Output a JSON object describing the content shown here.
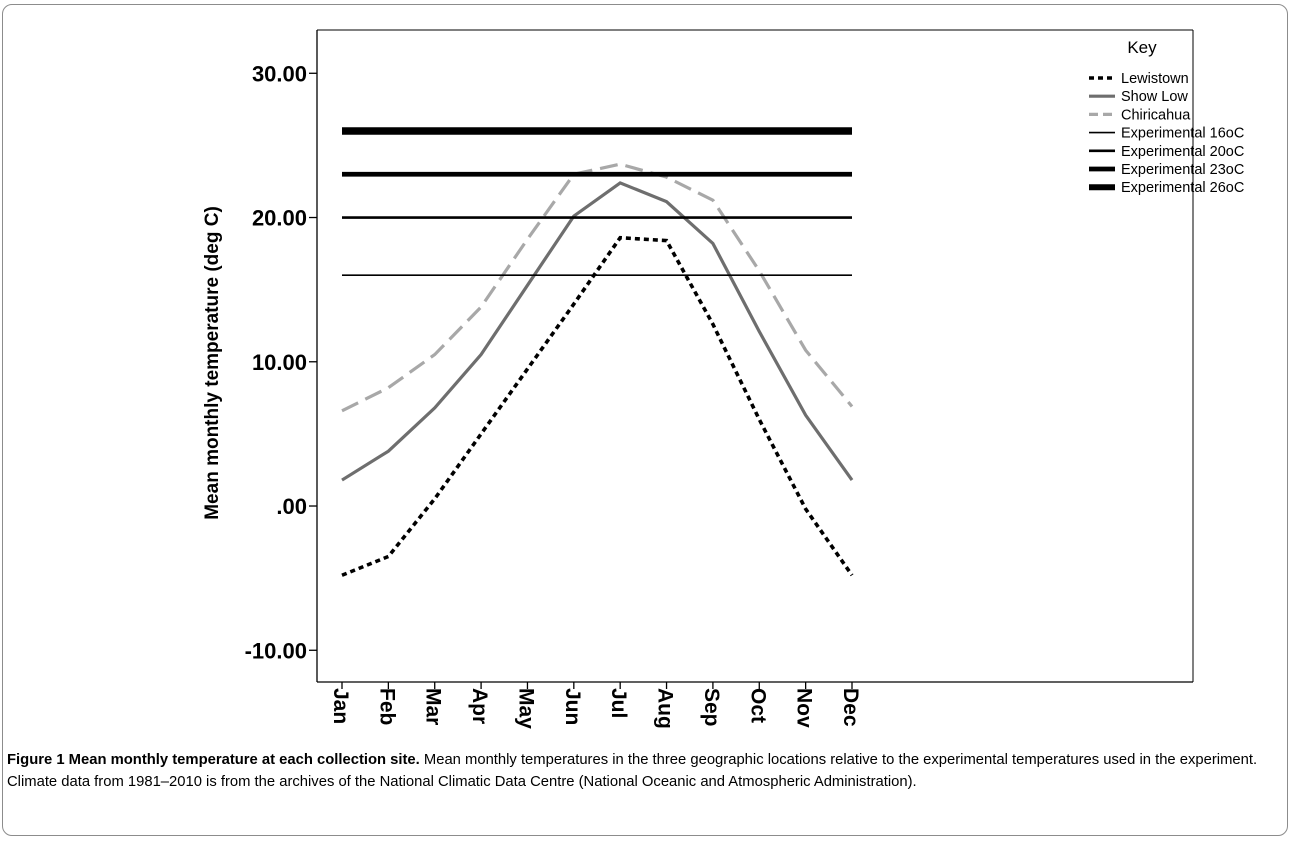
{
  "chart_data": {
    "type": "line",
    "ylabel": "Mean monthly temperature (deg C)",
    "xlabel": "",
    "categories": [
      "Jan",
      "Feb",
      "Mar",
      "Apr",
      "May",
      "Jun",
      "Jul",
      "Aug",
      "Sep",
      "Oct",
      "Nov",
      "Dec"
    ],
    "ylim": [
      -12.2,
      33.0
    ],
    "yticks": [
      -10,
      0,
      10,
      20,
      30
    ],
    "ytick_labels": [
      "-10.00",
      ".00",
      "10.00",
      "20.00",
      "30.00"
    ],
    "grid": false,
    "legend": {
      "title": "Key",
      "placement": "right"
    },
    "series": [
      {
        "name": "Lewistown",
        "style": "dotted-heavy",
        "color": "#000000",
        "values": [
          -4.8,
          -3.5,
          0.5,
          5.0,
          9.5,
          14.0,
          18.6,
          18.4,
          12.6,
          6.0,
          -0.2,
          -4.8
        ]
      },
      {
        "name": "Show Low",
        "style": "solid-gray",
        "color": "#6e6e6e",
        "values": [
          1.8,
          3.8,
          6.8,
          10.5,
          15.3,
          20.1,
          22.4,
          21.1,
          18.2,
          12.1,
          6.3,
          1.8
        ]
      },
      {
        "name": "Chiricahua",
        "style": "dashed-lightgray",
        "color": "#a8a8a8",
        "values": [
          6.6,
          8.2,
          10.5,
          13.8,
          18.5,
          23.0,
          23.7,
          22.8,
          21.2,
          16.3,
          10.8,
          6.9
        ]
      },
      {
        "name": "Experimental 16oC",
        "style": "line-thin",
        "color": "#000000",
        "values": [
          16,
          16,
          16,
          16,
          16,
          16,
          16,
          16,
          16,
          16,
          16,
          16
        ]
      },
      {
        "name": "Experimental 20oC",
        "style": "line-medium",
        "color": "#000000",
        "values": [
          20,
          20,
          20,
          20,
          20,
          20,
          20,
          20,
          20,
          20,
          20,
          20
        ]
      },
      {
        "name": "Experimental 23oC",
        "style": "line-thick",
        "color": "#000000",
        "values": [
          23,
          23,
          23,
          23,
          23,
          23,
          23,
          23,
          23,
          23,
          23,
          23
        ]
      },
      {
        "name": "Experimental 26oC",
        "style": "line-heavy",
        "color": "#000000",
        "values": [
          26,
          26,
          26,
          26,
          26,
          26,
          26,
          26,
          26,
          26,
          26,
          26
        ]
      }
    ]
  },
  "caption": {
    "title": "Figure 1 Mean monthly temperature at each collection site.",
    "text": " Mean monthly temperatures in the three geographic locations relative to the experimental temperatures used in the experiment. Climate data from 1981–2010 is from the archives of the National Climatic Data Centre (National Oceanic and Atmospheric Administration)."
  }
}
